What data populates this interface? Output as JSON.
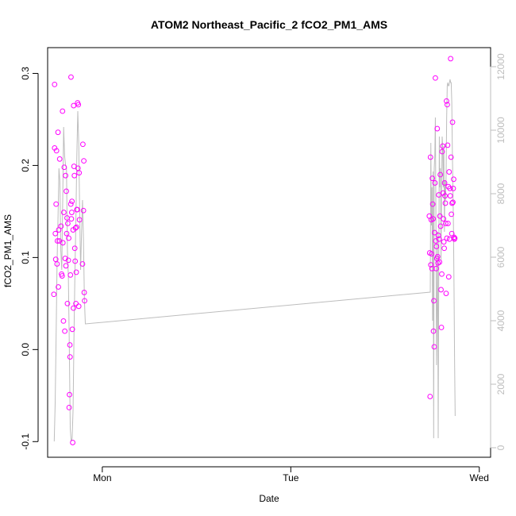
{
  "chart_data": {
    "type": "scatter",
    "title": "ATOM2 Northeast_Pacific_2 fCO2_PM1_AMS",
    "xlabel": "Date",
    "ylabel": "fCO2_PM1_AMS",
    "x_ticks": [
      {
        "label": "Mon",
        "value": 0
      },
      {
        "label": "Tue",
        "value": 1
      },
      {
        "label": "Wed",
        "value": 2
      }
    ],
    "xlim": [
      -0.29,
      2.06
    ],
    "ylim": [
      -0.117,
      0.328
    ],
    "y_ticks": [
      -0.1,
      0.0,
      0.1,
      0.2,
      0.3
    ],
    "y_tick_labels": [
      "-0.1",
      "0.0",
      "0.1",
      "0.2",
      "0.3"
    ],
    "y2_ticks": [
      0,
      2000,
      4000,
      6000,
      8000,
      10000,
      12000
    ],
    "y2_tick_labels": [
      "0",
      "2000",
      "4000",
      "6000",
      "8000",
      "10000",
      "12000"
    ],
    "y2lim": [
      -300,
      12600
    ],
    "grid": false,
    "colors": {
      "points": "#ff00ff",
      "line": "#bdbdbd",
      "axis": "#000000",
      "axis2": "#bdbdbd"
    },
    "series": [
      {
        "type": "scatter",
        "axis": "left",
        "points": [
          [
            -0.257,
            0.06
          ],
          [
            -0.253,
            0.288
          ],
          [
            -0.253,
            0.219
          ],
          [
            -0.249,
            0.126
          ],
          [
            -0.247,
            0.098
          ],
          [
            -0.245,
            0.158
          ],
          [
            -0.243,
            0.216
          ],
          [
            -0.24,
            0.093
          ],
          [
            -0.238,
            0.118
          ],
          [
            -0.235,
            0.236
          ],
          [
            -0.233,
            0.068
          ],
          [
            -0.231,
            0.13
          ],
          [
            -0.228,
            0.118
          ],
          [
            -0.226,
            0.207
          ],
          [
            -0.219,
            0.134
          ],
          [
            -0.216,
            0.082
          ],
          [
            -0.213,
            0.08
          ],
          [
            -0.211,
            0.259
          ],
          [
            -0.209,
            0.116
          ],
          [
            -0.206,
            0.031
          ],
          [
            -0.204,
            0.149
          ],
          [
            -0.202,
            0.198
          ],
          [
            -0.199,
            0.02
          ],
          [
            -0.197,
            0.099
          ],
          [
            -0.195,
            0.189
          ],
          [
            -0.193,
            0.091
          ],
          [
            -0.191,
            0.172
          ],
          [
            -0.189,
            0.126
          ],
          [
            -0.187,
            0.143
          ],
          [
            -0.185,
            0.05
          ],
          [
            -0.183,
            0.137
          ],
          [
            -0.18,
            0.097
          ],
          [
            -0.178,
            0.121
          ],
          [
            -0.176,
            -0.063
          ],
          [
            -0.174,
            -0.049
          ],
          [
            -0.172,
            0.005
          ],
          [
            -0.171,
            -0.008
          ],
          [
            -0.169,
            0.081
          ],
          [
            -0.167,
            0.158
          ],
          [
            -0.166,
            0.296
          ],
          [
            -0.164,
            0.142
          ],
          [
            -0.162,
            0.149
          ],
          [
            -0.161,
            0.161
          ],
          [
            -0.159,
            0.022
          ],
          [
            -0.157,
            -0.101
          ],
          [
            -0.155,
            0.13
          ],
          [
            -0.153,
            0.045
          ],
          [
            -0.152,
            0.265
          ],
          [
            -0.15,
            0.199
          ],
          [
            -0.148,
            0.189
          ],
          [
            -0.146,
            0.11
          ],
          [
            -0.144,
            0.096
          ],
          [
            -0.142,
            0.132
          ],
          [
            -0.14,
            0.05
          ],
          [
            -0.138,
            0.084
          ],
          [
            -0.137,
            0.133
          ],
          [
            -0.135,
            0.152
          ],
          [
            -0.133,
            0.152
          ],
          [
            -0.131,
            0.268
          ],
          [
            -0.129,
            0.197
          ],
          [
            -0.127,
            0.266
          ],
          [
            -0.125,
            0.047
          ],
          [
            -0.123,
            0.192
          ],
          [
            -0.121,
            0.141
          ],
          [
            -0.105,
            0.093
          ],
          [
            -0.103,
            0.223
          ],
          [
            -0.1,
            0.151
          ],
          [
            -0.098,
            0.205
          ],
          [
            -0.096,
            0.062
          ],
          [
            -0.094,
            0.053
          ],
          [
            1.735,
            0.145
          ],
          [
            1.737,
            0.105
          ],
          [
            1.739,
            -0.051
          ],
          [
            1.741,
            0.209
          ],
          [
            1.743,
            0.092
          ],
          [
            1.745,
            0.141
          ],
          [
            1.747,
            0.104
          ],
          [
            1.749,
            0.088
          ],
          [
            1.751,
            0.186
          ],
          [
            1.753,
            0.158
          ],
          [
            1.755,
            0.142
          ],
          [
            1.757,
            0.02
          ],
          [
            1.759,
            0.053
          ],
          [
            1.761,
            0.003
          ],
          [
            1.763,
            0.127
          ],
          [
            1.765,
            0.181
          ],
          [
            1.767,
            0.295
          ],
          [
            1.769,
            0.118
          ],
          [
            1.771,
            0.088
          ],
          [
            1.773,
            0.112
          ],
          [
            1.775,
            0.099
          ],
          [
            1.777,
            0.24
          ],
          [
            1.779,
            0.101
          ],
          [
            1.781,
            0.094
          ],
          [
            1.783,
            0.124
          ],
          [
            1.785,
            0.168
          ],
          [
            1.787,
            0.12
          ],
          [
            1.789,
            0.095
          ],
          [
            1.791,
            0.145
          ],
          [
            1.793,
            0.19
          ],
          [
            1.795,
            0.134
          ],
          [
            1.797,
            0.065
          ],
          [
            1.799,
            0.024
          ],
          [
            1.801,
            0.082
          ],
          [
            1.803,
            0.215
          ],
          [
            1.806,
            0.221
          ],
          [
            1.808,
            0.17
          ],
          [
            1.81,
            0.142
          ],
          [
            1.812,
            0.117
          ],
          [
            1.814,
            0.11
          ],
          [
            1.816,
            0.181
          ],
          [
            1.818,
            0.167
          ],
          [
            1.82,
            0.159
          ],
          [
            1.822,
            0.137
          ],
          [
            1.824,
            0.061
          ],
          [
            1.826,
            0.27
          ],
          [
            1.828,
            0.121
          ],
          [
            1.83,
            0.266
          ],
          [
            1.832,
            0.222
          ],
          [
            1.834,
            0.137
          ],
          [
            1.836,
            0.177
          ],
          [
            1.838,
            0.079
          ],
          [
            1.84,
            0.193
          ],
          [
            1.842,
            0.12
          ],
          [
            1.844,
            0.175
          ],
          [
            1.846,
            0.167
          ],
          [
            1.848,
            0.316
          ],
          [
            1.85,
            0.209
          ],
          [
            1.852,
            0.147
          ],
          [
            1.854,
            0.126
          ],
          [
            1.856,
            0.159
          ],
          [
            1.858,
            0.247
          ],
          [
            1.86,
            0.16
          ],
          [
            1.862,
            0.175
          ],
          [
            1.864,
            0.185
          ],
          [
            1.866,
            0.122
          ],
          [
            1.868,
            0.12
          ],
          [
            1.87,
            0.121
          ]
        ]
      },
      {
        "type": "line",
        "axis": "right",
        "points": [
          [
            -0.255,
            200
          ],
          [
            -0.25,
            1400
          ],
          [
            -0.245,
            3500
          ],
          [
            -0.24,
            5800
          ],
          [
            -0.235,
            7200
          ],
          [
            -0.23,
            8800
          ],
          [
            -0.225,
            8400
          ],
          [
            -0.22,
            6200
          ],
          [
            -0.215,
            5600
          ],
          [
            -0.21,
            7800
          ],
          [
            -0.205,
            10100
          ],
          [
            -0.2,
            9200
          ],
          [
            -0.195,
            8900
          ],
          [
            -0.19,
            8800
          ],
          [
            -0.185,
            6200
          ],
          [
            -0.18,
            5400
          ],
          [
            -0.175,
            3200
          ],
          [
            -0.17,
            600
          ],
          [
            -0.165,
            200
          ],
          [
            -0.16,
            300
          ],
          [
            -0.155,
            1200
          ],
          [
            -0.15,
            3600
          ],
          [
            -0.145,
            5600
          ],
          [
            -0.14,
            7200
          ],
          [
            -0.135,
            9200
          ],
          [
            -0.13,
            10600
          ],
          [
            -0.125,
            9600
          ],
          [
            -0.12,
            7400
          ],
          [
            -0.115,
            5600
          ],
          [
            -0.11,
            6800
          ],
          [
            -0.105,
            7800
          ],
          [
            -0.1,
            6600
          ],
          [
            -0.095,
            4700
          ],
          [
            -0.09,
            3900
          ],
          [
            1.74,
            4900
          ],
          [
            1.743,
            9600
          ],
          [
            1.746,
            7000
          ],
          [
            1.749,
            8200
          ],
          [
            1.752,
            4000
          ],
          [
            1.755,
            8700
          ],
          [
            1.758,
            300
          ],
          [
            1.761,
            8800
          ],
          [
            1.764,
            9200
          ],
          [
            1.767,
            10400
          ],
          [
            1.77,
            7200
          ],
          [
            1.773,
            2600
          ],
          [
            1.776,
            4400
          ],
          [
            1.779,
            6800
          ],
          [
            1.782,
            300
          ],
          [
            1.785,
            5400
          ],
          [
            1.788,
            9800
          ],
          [
            1.791,
            8200
          ],
          [
            1.794,
            8800
          ],
          [
            1.797,
            5900
          ],
          [
            1.8,
            8000
          ],
          [
            1.803,
            9800
          ],
          [
            1.806,
            9500
          ],
          [
            1.809,
            8200
          ],
          [
            1.812,
            9500
          ],
          [
            1.815,
            6800
          ],
          [
            1.818,
            8400
          ],
          [
            1.821,
            7800
          ],
          [
            1.824,
            8600
          ],
          [
            1.827,
            10400
          ],
          [
            1.83,
            11400
          ],
          [
            1.833,
            11500
          ],
          [
            1.836,
            11400
          ],
          [
            1.839,
            11400
          ],
          [
            1.842,
            11500
          ],
          [
            1.845,
            11600
          ],
          [
            1.848,
            11500
          ],
          [
            1.851,
            11500
          ],
          [
            1.854,
            10900
          ],
          [
            1.857,
            9400
          ],
          [
            1.86,
            8200
          ],
          [
            1.863,
            7000
          ],
          [
            1.866,
            5000
          ],
          [
            1.869,
            2700
          ],
          [
            1.872,
            1000
          ]
        ]
      }
    ]
  }
}
